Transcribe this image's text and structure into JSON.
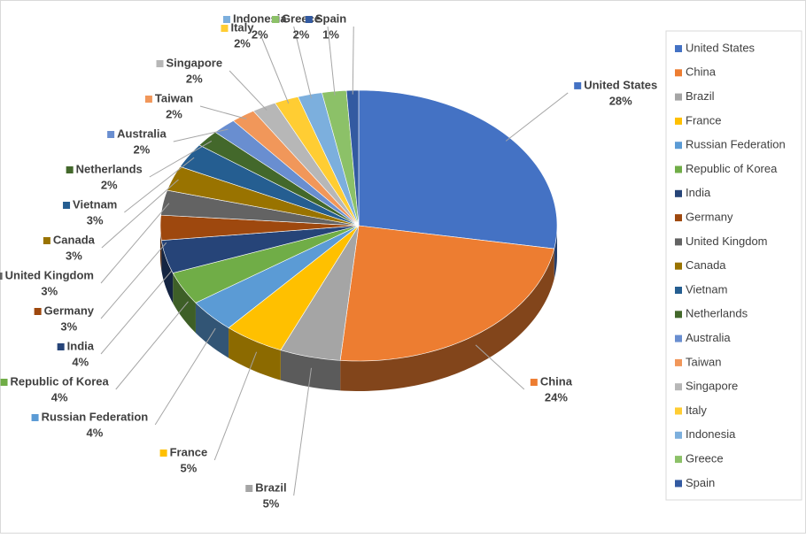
{
  "chart_data": {
    "type": "pie3d",
    "categories": [
      "United States",
      "China",
      "Brazil",
      "France",
      "Russian Federation",
      "Republic of Korea",
      "India",
      "Germany",
      "United Kingdom",
      "Canada",
      "Vietnam",
      "Netherlands",
      "Australia",
      "Taiwan",
      "Singapore",
      "Italy",
      "Indonesia",
      "Greece",
      "Spain"
    ],
    "values": [
      28,
      24,
      5,
      5,
      4,
      4,
      4,
      3,
      3,
      3,
      3,
      2,
      2,
      2,
      2,
      2,
      2,
      2,
      1
    ],
    "value_labels": [
      "28%",
      "24%",
      "5%",
      "5%",
      "4%",
      "4%",
      "4%",
      "3%",
      "3%",
      "3%",
      "3%",
      "2%",
      "2%",
      "2%",
      "2%",
      "2%",
      "2%",
      "2%",
      "1%"
    ],
    "colors": [
      "#4472C4",
      "#ED7D31",
      "#A5A5A5",
      "#FFC000",
      "#5B9BD5",
      "#70AD47",
      "#264478",
      "#9E480E",
      "#636363",
      "#997300",
      "#255E91",
      "#43682B",
      "#698ED0",
      "#F1975A",
      "#B7B7B7",
      "#FFCD33",
      "#7CAFDD",
      "#8CC168",
      "#335AA1"
    ],
    "legend": "right"
  }
}
